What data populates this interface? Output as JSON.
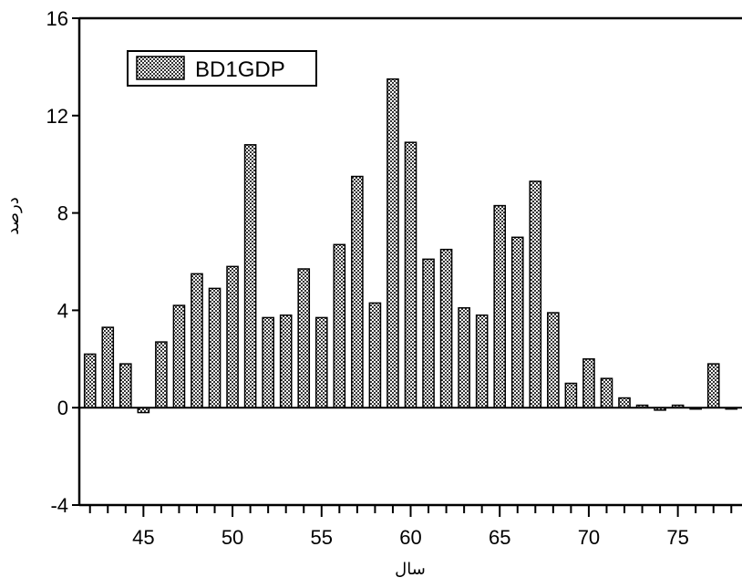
{
  "chart_data": {
    "type": "bar",
    "legend": {
      "label": "BD1GDP",
      "placement": "top-left"
    },
    "xlabel": "سال",
    "ylabel": "درصد",
    "ylim": [
      -4,
      16
    ],
    "xlim": [
      41.4,
      78.6
    ],
    "y_ticks": [
      -4,
      0,
      4,
      8,
      12,
      16
    ],
    "x_tick_labels": [
      45,
      50,
      55,
      60,
      65,
      70,
      75
    ],
    "grid": false,
    "series": [
      {
        "name": "BD1GDP",
        "x": [
          42,
          43,
          44,
          45,
          46,
          47,
          48,
          49,
          50,
          51,
          52,
          53,
          54,
          55,
          56,
          57,
          58,
          59,
          60,
          61,
          62,
          63,
          64,
          65,
          66,
          67,
          68,
          69,
          70,
          71,
          72,
          73,
          74,
          75,
          76,
          77,
          78
        ],
        "values": [
          2.2,
          3.3,
          1.8,
          -0.2,
          2.7,
          4.2,
          5.5,
          4.9,
          5.8,
          10.8,
          3.7,
          3.8,
          5.7,
          3.7,
          6.7,
          9.5,
          4.3,
          13.5,
          10.9,
          6.1,
          6.5,
          4.1,
          3.8,
          8.3,
          7.0,
          9.3,
          3.9,
          1.0,
          2.0,
          1.2,
          0.4,
          0.1,
          -0.1,
          0.1,
          0.0,
          1.8,
          0.0
        ]
      }
    ]
  }
}
